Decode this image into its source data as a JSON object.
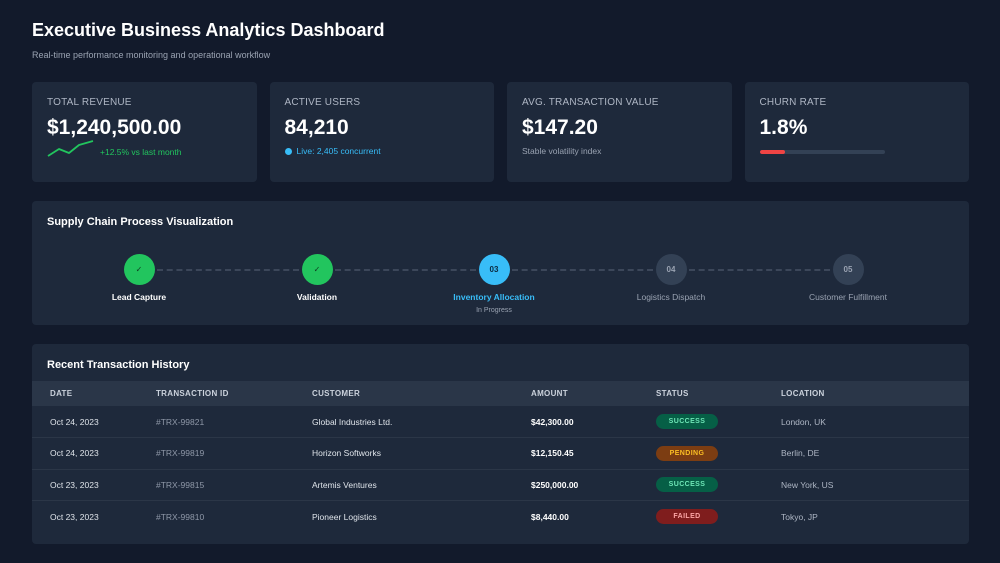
{
  "header": {
    "title": "Executive Business Analytics Dashboard",
    "subtitle": "Real-time performance monitoring and operational workflow"
  },
  "kpis": {
    "revenue": {
      "label": "TOTAL REVENUE",
      "value": "$1,240,500.00",
      "sub": "+12.5% vs last month",
      "color": "#22c55e"
    },
    "users": {
      "label": "ACTIVE USERS",
      "value": "84,210",
      "sub": "Live: 2,405 concurrent",
      "color": "#38bdf8"
    },
    "avg": {
      "label": "AVG. TRANSACTION VALUE",
      "value": "$147.20",
      "sub": "Stable volatility index"
    },
    "churn": {
      "label": "CHURN RATE",
      "value": "1.8%",
      "progress": 0.2,
      "color": "#ef4444"
    }
  },
  "supply_chain": {
    "title": "Supply Chain Process Visualization",
    "steps": [
      {
        "marker": "✓",
        "label": "Lead Capture",
        "state": "done"
      },
      {
        "marker": "✓",
        "label": "Validation",
        "state": "done"
      },
      {
        "marker": "03",
        "label": "Inventory Allocation",
        "state": "active",
        "status": "In Progress"
      },
      {
        "marker": "04",
        "label": "Logistics Dispatch",
        "state": "pending"
      },
      {
        "marker": "05",
        "label": "Customer Fulfillment",
        "state": "pending"
      }
    ]
  },
  "transactions": {
    "title": "Recent Transaction History",
    "columns": [
      "DATE",
      "TRANSACTION ID",
      "CUSTOMER",
      "AMOUNT",
      "STATUS",
      "LOCATION"
    ],
    "rows": [
      {
        "date": "Oct 24, 2023",
        "id": "#TRX-99821",
        "customer": "Global Industries Ltd.",
        "amount": "$42,300.00",
        "status": "SUCCESS",
        "location": "London, UK"
      },
      {
        "date": "Oct 24, 2023",
        "id": "#TRX-99819",
        "customer": "Horizon Softworks",
        "amount": "$12,150.45",
        "status": "PENDING",
        "location": "Berlin, DE"
      },
      {
        "date": "Oct 23, 2023",
        "id": "#TRX-99815",
        "customer": "Artemis Ventures",
        "amount": "$250,000.00",
        "status": "SUCCESS",
        "location": "New York, US"
      },
      {
        "date": "Oct 23, 2023",
        "id": "#TRX-99810",
        "customer": "Pioneer Logistics",
        "amount": "$8,440.00",
        "status": "FAILED",
        "location": "Tokyo, JP"
      }
    ]
  }
}
